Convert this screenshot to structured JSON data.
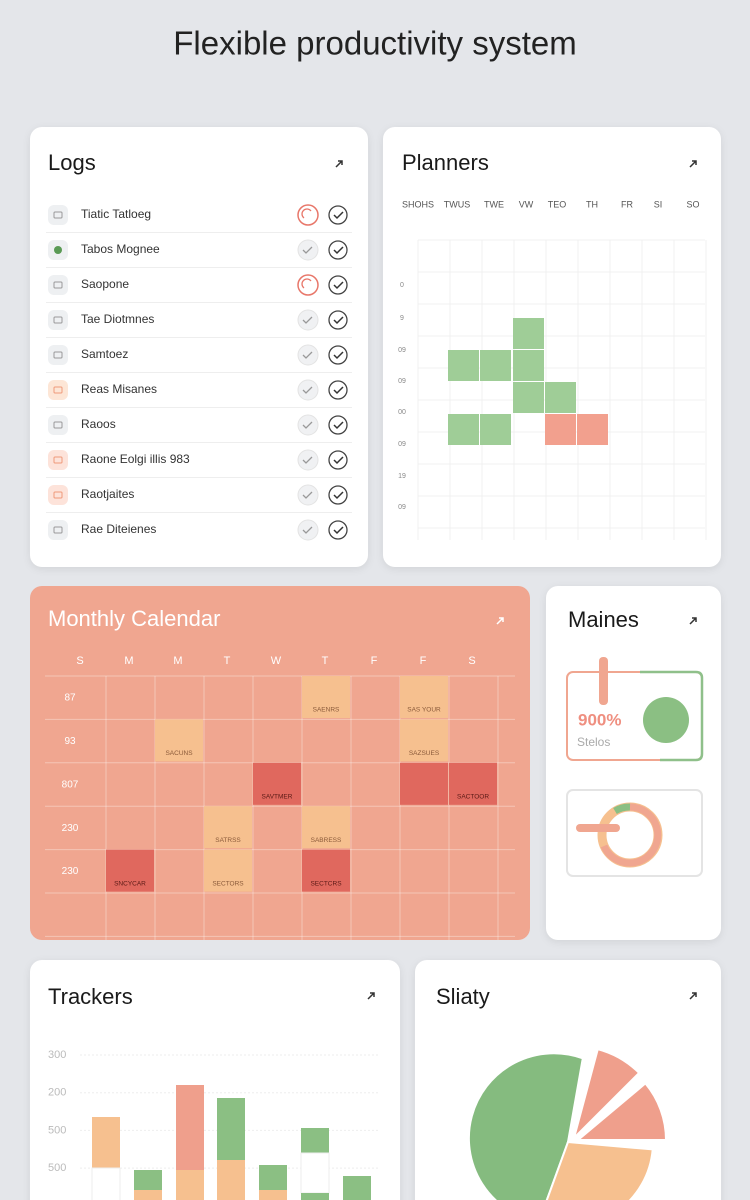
{
  "title": "Flexible productivity system",
  "logs": {
    "title": "Logs",
    "items": [
      "Tiatic Tatloeg",
      "Tabos Mognee",
      "Saopone",
      "Tae Diotmnes",
      "Samtoez",
      "Reas Misanes",
      "Raoos",
      "Raone Eolgi illis 983",
      "Raotjaites",
      "Rae Diteienes"
    ]
  },
  "planners": {
    "title": "Planners",
    "days": [
      "SHOHS",
      "TWUS",
      "TWE",
      "VW",
      "TEO",
      "TH",
      "FR",
      "SI",
      "SO"
    ],
    "rows": [
      "0",
      "9",
      "09",
      "09",
      "00",
      "09",
      "19",
      "09"
    ]
  },
  "calendar": {
    "title": "Monthly Calendar",
    "weekdays": [
      "S",
      "M",
      "M",
      "T",
      "W",
      "T",
      "F",
      "F",
      "S"
    ],
    "rows": [
      "87",
      "93",
      "807",
      "230",
      "230"
    ],
    "events": [
      "SAENRS",
      "SAS YOUR",
      "SACUNS",
      "SAZSUES",
      "SAVTMER",
      "SACTOOR",
      "SATRSS",
      "SABRESS",
      "SNCYCAR",
      "SECTORS",
      "SECTCRS"
    ]
  },
  "maines": {
    "title": "Maines",
    "value": "900%",
    "caption": "Stelos"
  },
  "trackers": {
    "title": "Trackers",
    "axis_labels": [
      "300",
      "200",
      "500",
      "500"
    ]
  },
  "sliaty": {
    "title": "Sliaty"
  }
}
